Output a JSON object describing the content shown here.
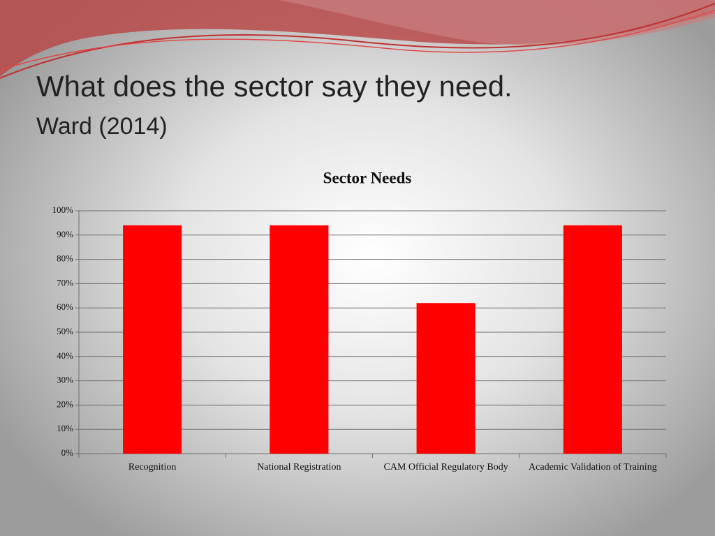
{
  "slide": {
    "title": "What does the sector say they need.",
    "subtitle": "Ward (2014)"
  },
  "chart_data": {
    "type": "bar",
    "title": "Sector Needs",
    "categories": [
      "Recognition",
      "National Registration",
      "CAM Official Regulatory Body",
      "Academic Validation of Training"
    ],
    "values": [
      94,
      94,
      62,
      94
    ],
    "color": "#ff0000",
    "ylim": [
      0,
      100
    ],
    "yticks": [
      {
        "value": 0,
        "label": "0%"
      },
      {
        "value": 10,
        "label": "10%"
      },
      {
        "value": 20,
        "label": "20%"
      },
      {
        "value": 30,
        "label": "30%"
      },
      {
        "value": 40,
        "label": "40%"
      },
      {
        "value": 50,
        "label": "50%"
      },
      {
        "value": 60,
        "label": "60%"
      },
      {
        "value": 70,
        "label": "70%"
      },
      {
        "value": 80,
        "label": "80%"
      },
      {
        "value": 90,
        "label": "90%"
      },
      {
        "value": 100,
        "label": "100%"
      }
    ],
    "grid": true
  }
}
